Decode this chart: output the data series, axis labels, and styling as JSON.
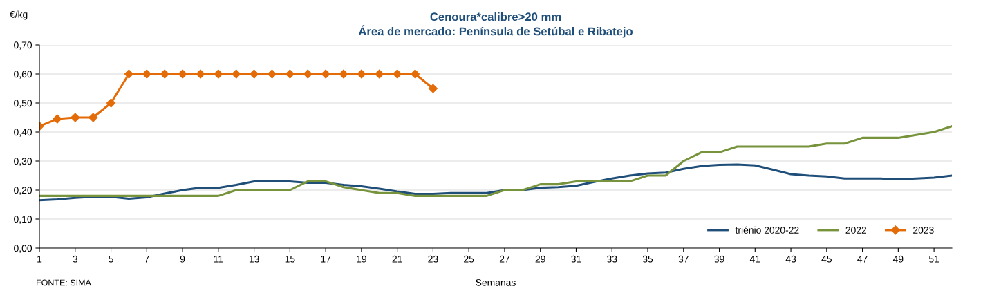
{
  "chart_data": {
    "type": "line",
    "title": "Cenoura*calibre>20 mm\nÁrea de mercado: Península de Setúbal e Ribatejo",
    "ylabel": "€/kg",
    "xlabel": "Semanas",
    "annotations": [
      "FONTE: SIMA"
    ],
    "x": [
      1,
      2,
      3,
      4,
      5,
      6,
      7,
      8,
      9,
      10,
      11,
      12,
      13,
      14,
      15,
      16,
      17,
      18,
      19,
      20,
      21,
      22,
      23,
      24,
      25,
      26,
      27,
      28,
      29,
      30,
      31,
      32,
      33,
      34,
      35,
      36,
      37,
      38,
      39,
      40,
      41,
      42,
      43,
      44,
      45,
      46,
      47,
      48,
      49,
      50,
      51,
      52
    ],
    "xlim": [
      1,
      52
    ],
    "xticks": [
      1,
      3,
      5,
      7,
      9,
      11,
      13,
      15,
      17,
      19,
      21,
      23,
      25,
      27,
      29,
      31,
      33,
      35,
      37,
      39,
      41,
      43,
      45,
      47,
      49,
      51
    ],
    "ylim": [
      0,
      0.7
    ],
    "yticks": [
      {
        "value": 0,
        "label": "0,00"
      },
      {
        "value": 0.1,
        "label": "0,10"
      },
      {
        "value": 0.2,
        "label": "0,20"
      },
      {
        "value": 0.3,
        "label": "0,30"
      },
      {
        "value": 0.4,
        "label": "0,40"
      },
      {
        "value": 0.5,
        "label": "0,50"
      },
      {
        "value": 0.6,
        "label": "0,60"
      },
      {
        "value": 0.7,
        "label": "0,70"
      }
    ],
    "grid": "y",
    "legend": "bottom right",
    "series": [
      {
        "name": "triénio 2020-22",
        "color": "#1f4e79",
        "marker": "none",
        "values": [
          0.165,
          0.168,
          0.173,
          0.177,
          0.177,
          0.17,
          0.175,
          0.188,
          0.2,
          0.208,
          0.208,
          0.218,
          0.23,
          0.23,
          0.23,
          0.225,
          0.225,
          0.218,
          0.213,
          0.205,
          0.195,
          0.187,
          0.187,
          0.19,
          0.19,
          0.19,
          0.2,
          0.2,
          0.208,
          0.21,
          0.215,
          0.228,
          0.24,
          0.25,
          0.257,
          0.26,
          0.273,
          0.283,
          0.287,
          0.288,
          0.285,
          0.27,
          0.255,
          0.25,
          0.247,
          0.24,
          0.24,
          0.24,
          0.237,
          0.24,
          0.243,
          0.25
        ]
      },
      {
        "name": "2022",
        "color": "#77933c",
        "marker": "none",
        "values": [
          0.18,
          0.18,
          0.18,
          0.18,
          0.18,
          0.18,
          0.18,
          0.18,
          0.18,
          0.18,
          0.18,
          0.2,
          0.2,
          0.2,
          0.2,
          0.23,
          0.23,
          0.21,
          0.2,
          0.19,
          0.19,
          0.18,
          0.18,
          0.18,
          0.18,
          0.18,
          0.2,
          0.2,
          0.22,
          0.22,
          0.23,
          0.23,
          0.23,
          0.23,
          0.25,
          0.25,
          0.3,
          0.33,
          0.33,
          0.35,
          0.35,
          0.35,
          0.35,
          0.35,
          0.36,
          0.36,
          0.38,
          0.38,
          0.38,
          0.39,
          0.4,
          0.42
        ]
      },
      {
        "name": "2023",
        "color": "#e36c09",
        "marker": "diamond",
        "values": [
          0.42,
          0.445,
          0.45,
          0.45,
          0.5,
          0.6,
          0.6,
          0.6,
          0.6,
          0.6,
          0.6,
          0.6,
          0.6,
          0.6,
          0.6,
          0.6,
          0.6,
          0.6,
          0.6,
          0.6,
          0.6,
          0.6,
          0.55,
          null,
          null,
          null,
          null,
          null,
          null,
          null,
          null,
          null,
          null,
          null,
          null,
          null,
          null,
          null,
          null,
          null,
          null,
          null,
          null,
          null,
          null,
          null,
          null,
          null,
          null,
          null,
          null,
          null
        ]
      }
    ]
  }
}
